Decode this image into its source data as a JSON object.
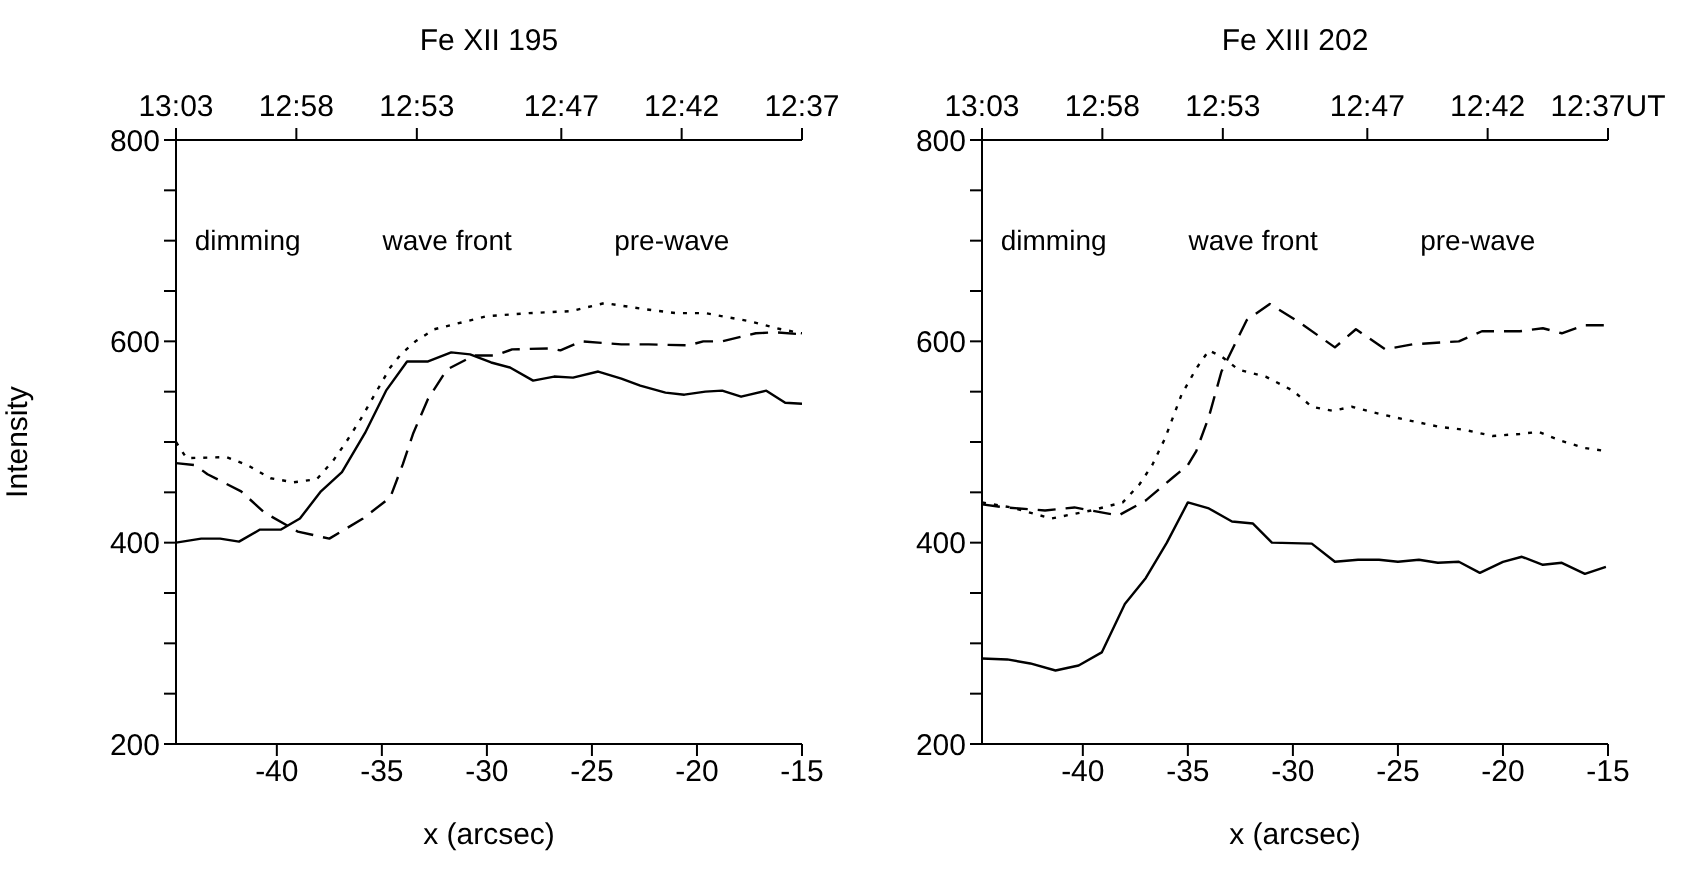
{
  "chart_data": [
    {
      "type": "line",
      "title": "Fe XII 195",
      "xlabel": "x (arcsec)",
      "ylabel": "Intensity",
      "xlim": [
        -44.8,
        -15
      ],
      "xticks": [
        -40,
        -35,
        -30,
        -25,
        -20,
        -15
      ],
      "ylim": [
        200,
        800
      ],
      "yticks": [
        200,
        {
          "value": 250,
          "label": null
        },
        {
          "value": 300,
          "label": null
        },
        {
          "value": 350,
          "label": null
        },
        400,
        {
          "value": 450,
          "label": null
        },
        {
          "value": 500,
          "label": null
        },
        {
          "value": 550,
          "label": null
        },
        600,
        {
          "value": 650,
          "label": null
        },
        {
          "value": 700,
          "label": null
        },
        {
          "value": 750,
          "label": null
        },
        800
      ],
      "x2lim": [
        13.05,
        12.6167
      ],
      "x2ticks": [
        {
          "value": 13.05,
          "label": "13:03"
        },
        {
          "value": 12.9667,
          "label": "12:58"
        },
        {
          "value": 12.8833,
          "label": "12:53"
        },
        {
          "value": 12.7833,
          "label": "12:47"
        },
        {
          "value": 12.7,
          "label": "12:42"
        },
        {
          "value": 12.6167,
          "label": "12:37"
        }
      ],
      "annotations": [
        "dimming",
        "wave front",
        "pre-wave"
      ],
      "series": [
        {
          "color": "#000000",
          "line_style": "solid",
          "x": [
            -44.8,
            -43.6,
            -42.7,
            -41.8,
            -40.8,
            -39.8,
            -38.9,
            -37.9,
            -36.9,
            -35.8,
            -34.8,
            -33.8,
            -32.8,
            -31.7,
            -30.8,
            -29.8,
            -28.9,
            -27.8,
            -26.8,
            -25.9,
            -24.7,
            -23.6,
            -22.7,
            -21.5,
            -20.6,
            -19.6,
            -18.8,
            -17.9,
            -16.7,
            -15.8,
            -15
          ],
          "values": [
            400,
            404,
            404,
            401,
            413,
            413,
            424,
            451,
            470,
            509,
            551,
            580,
            580,
            589,
            587,
            579,
            574,
            561,
            565,
            564,
            570,
            563,
            556,
            549,
            547,
            550,
            551,
            545,
            551,
            539,
            538
          ]
        },
        {
          "color": "#000000",
          "line_style": "dashed",
          "x": [
            -44.8,
            -43.9,
            -43.3,
            -41.7,
            -40.6,
            -39.0,
            -37.5,
            -35.9,
            -34.6,
            -34.0,
            -33.5,
            -32.8,
            -31.9,
            -30.6,
            -29.6,
            -28.8,
            -27.0,
            -26.5,
            -25.5,
            -23.6,
            -22.3,
            -20.4,
            -19.7,
            -18.8,
            -17.2,
            -16.3,
            -15
          ],
          "values": [
            479,
            477,
            468,
            451,
            430,
            411,
            404,
            424,
            445,
            478,
            509,
            543,
            572,
            586,
            586,
            592,
            593,
            591,
            600,
            597,
            597,
            596,
            600,
            600,
            608,
            609,
            607
          ]
        },
        {
          "color": "#000000",
          "line_style": "dotted",
          "x": [
            -44.8,
            -44.3,
            -42.4,
            -41.4,
            -40.3,
            -39.2,
            -38.1,
            -37.3,
            -36.7,
            -36.0,
            -35.4,
            -34.6,
            -34.1,
            -33.4,
            -32.5,
            -30.0,
            -28.0,
            -26.0,
            -24.4,
            -22.5,
            -21.0,
            -19.6,
            -17.5,
            -16.0,
            -15
          ],
          "values": [
            500,
            484,
            485,
            477,
            464,
            460,
            463,
            482,
            500,
            523,
            545,
            574,
            587,
            600,
            612,
            625,
            628,
            630,
            638,
            632,
            628,
            628,
            620,
            612,
            608
          ]
        }
      ]
    },
    {
      "type": "line",
      "title": "Fe XIII 202",
      "xlabel": "x (arcsec)",
      "xlim": [
        -44.8,
        -15
      ],
      "xticks": [
        -40,
        -35,
        -30,
        -25,
        -20,
        -15
      ],
      "ylim": [
        200,
        800
      ],
      "yticks": [
        200,
        {
          "value": 250,
          "label": null
        },
        {
          "value": 300,
          "label": null
        },
        {
          "value": 350,
          "label": null
        },
        400,
        {
          "value": 450,
          "label": null
        },
        {
          "value": 500,
          "label": null
        },
        {
          "value": 550,
          "label": null
        },
        600,
        {
          "value": 650,
          "label": null
        },
        {
          "value": 700,
          "label": null
        },
        {
          "value": 750,
          "label": null
        },
        800
      ],
      "x2lim": [
        13.05,
        12.6167
      ],
      "x2ticks": [
        {
          "value": 13.05,
          "label": "13:03"
        },
        {
          "value": 12.9667,
          "label": "12:58"
        },
        {
          "value": 12.8833,
          "label": "12:53"
        },
        {
          "value": 12.7833,
          "label": "12:47"
        },
        {
          "value": 12.7,
          "label": "12:42"
        },
        {
          "value": 12.6167,
          "label": "12:37UT"
        }
      ],
      "annotations": [
        "dimming",
        "wave front",
        "pre-wave"
      ],
      "series": [
        {
          "color": "#000000",
          "line_style": "solid",
          "x": [
            -44.8,
            -43.6,
            -42.5,
            -41.3,
            -40.2,
            -39.1,
            -38.0,
            -37.0,
            -36.0,
            -35.0,
            -34.0,
            -32.9,
            -31.9,
            -31.0,
            -29.1,
            -28.0,
            -26.9,
            -25.9,
            -25.0,
            -24.0,
            -23.1,
            -22.1,
            -21.1,
            -20.0,
            -19.1,
            -18.1,
            -17.2,
            -16.1,
            -15.1
          ],
          "values": [
            285,
            284,
            280,
            273,
            278,
            291,
            339,
            365,
            400,
            440,
            434,
            421,
            419,
            400,
            399,
            381,
            383,
            383,
            381,
            383,
            380,
            381,
            370,
            381,
            386,
            378,
            380,
            369,
            376
          ]
        },
        {
          "color": "#000000",
          "line_style": "dashed",
          "x": [
            -44.8,
            -43.7,
            -41.8,
            -40.4,
            -38.3,
            -37.0,
            -35.7,
            -35.0,
            -34.6,
            -34.0,
            -33.4,
            -32.2,
            -31.1,
            -29.7,
            -28.0,
            -27.0,
            -25.6,
            -24.3,
            -22.1,
            -21.0,
            -19.2,
            -18.1,
            -17.2,
            -16.1,
            -15.1
          ],
          "values": [
            438,
            435,
            432,
            435,
            427,
            442,
            465,
            477,
            491,
            525,
            570,
            621,
            637,
            619,
            594,
            612,
            592,
            597,
            600,
            610,
            610,
            613,
            608,
            616,
            616
          ]
        },
        {
          "color": "#000000",
          "line_style": "dotted",
          "x": [
            -44.8,
            -43.4,
            -41.5,
            -39.6,
            -38.1,
            -37.3,
            -36.7,
            -36.1,
            -35.3,
            -34.6,
            -34.0,
            -33.4,
            -32.6,
            -31.3,
            -30.0,
            -29.1,
            -28.1,
            -27.2,
            -25.9,
            -24.6,
            -23.0,
            -21.8,
            -20.5,
            -19.2,
            -18.3,
            -17.2,
            -16.1,
            -15.1
          ],
          "values": [
            440,
            435,
            424,
            432,
            440,
            458,
            477,
            503,
            547,
            573,
            591,
            585,
            572,
            565,
            551,
            535,
            531,
            535,
            528,
            522,
            515,
            512,
            506,
            508,
            510,
            501,
            494,
            491
          ]
        }
      ]
    }
  ]
}
